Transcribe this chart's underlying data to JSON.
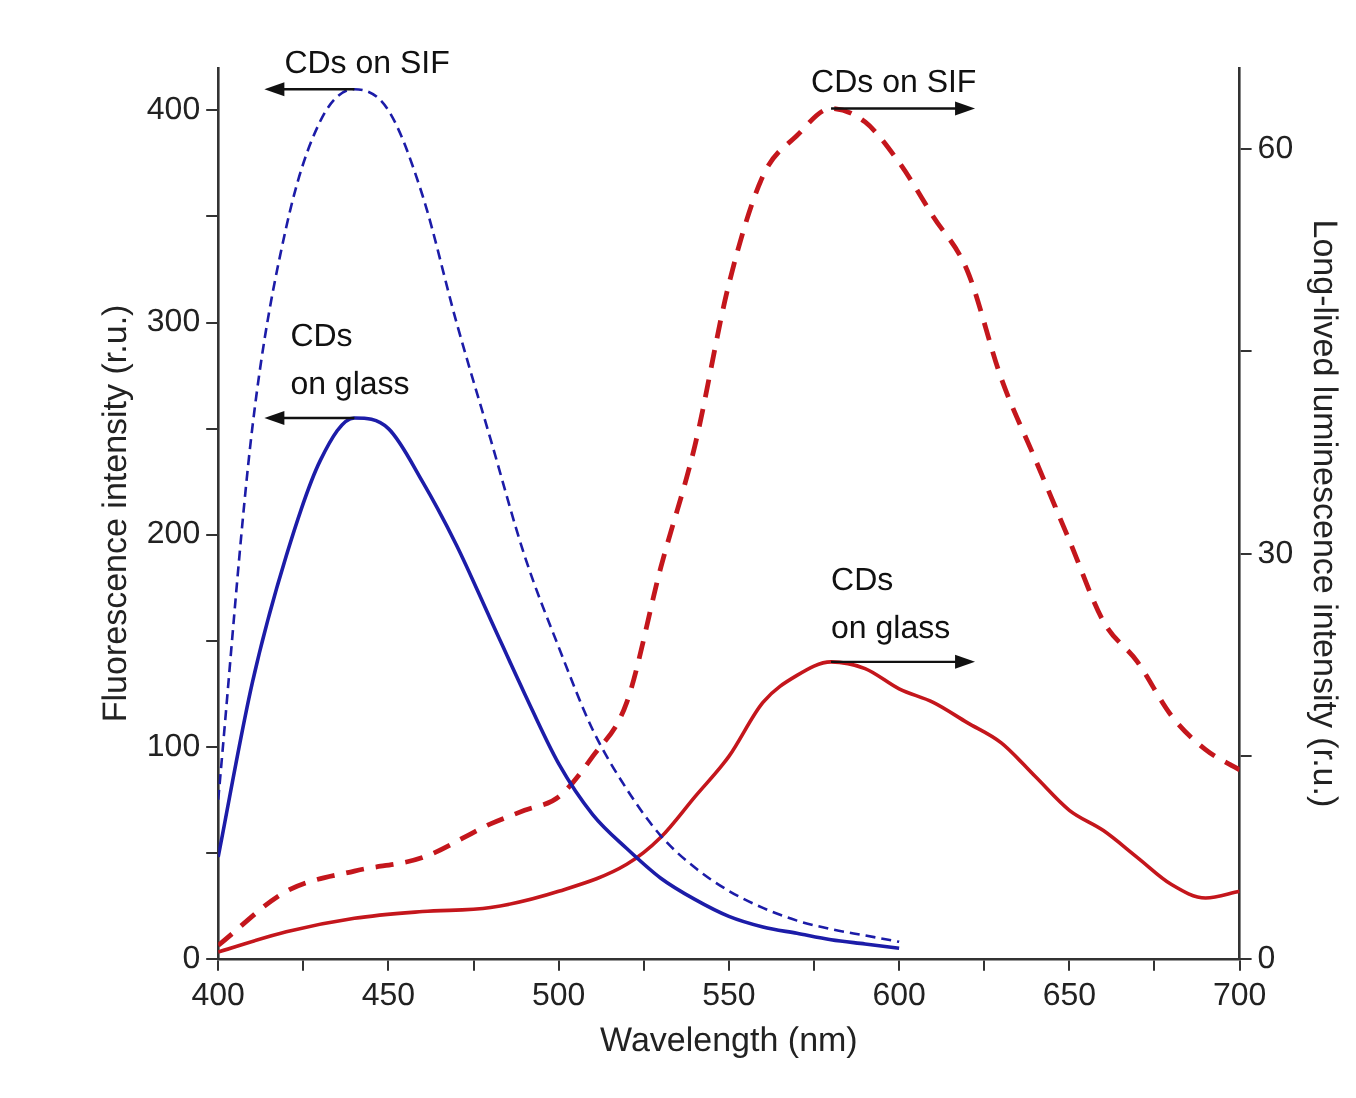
{
  "chart_data": {
    "type": "line",
    "xlabel": "Wavelength (nm)",
    "ylabel": "Fluorescence intensity (r.u.)",
    "y2label": "Long-lived luminescence intensity (r.u.)",
    "xlim": [
      400,
      700
    ],
    "xticks": [
      400,
      {
        "value": 425,
        "label": null
      },
      450,
      {
        "value": 475,
        "label": null
      },
      500,
      {
        "value": 525,
        "label": null
      },
      550,
      {
        "value": 575,
        "label": null
      },
      600,
      {
        "value": 625,
        "label": null
      },
      650,
      {
        "value": 675,
        "label": null
      },
      700
    ],
    "ylim": [
      0,
      420
    ],
    "yticks": [
      0,
      {
        "value": 50,
        "label": null
      },
      100,
      {
        "value": 150,
        "label": null
      },
      200,
      {
        "value": 250,
        "label": null
      },
      300,
      {
        "value": 350,
        "label": null
      },
      400
    ],
    "y2lim": [
      0,
      66
    ],
    "y2ticks": [
      0,
      {
        "value": 15,
        "label": null
      },
      30,
      {
        "value": 45,
        "label": null
      },
      60
    ],
    "legend": false,
    "grid": false,
    "marker": "none",
    "series": [
      {
        "color": "#1c1ca8",
        "line_style": "dashed",
        "x": [
          400,
          410,
          420,
          430,
          440,
          450,
          460,
          470,
          480,
          490,
          500,
          510,
          520,
          530,
          540,
          550,
          560,
          570,
          580,
          590,
          600
        ],
        "values": [
          75,
          250,
          345,
          395,
          410,
          400,
          360,
          300,
          245,
          190,
          147,
          108,
          80,
          58,
          43,
          32,
          24,
          18,
          14,
          11,
          8
        ]
      },
      {
        "color": "#1c1ca8",
        "line_style": "solid",
        "x": [
          400,
          410,
          420,
          430,
          440,
          450,
          460,
          470,
          480,
          490,
          500,
          510,
          520,
          530,
          540,
          550,
          560,
          570,
          580,
          590,
          600
        ],
        "values": [
          48,
          130,
          190,
          235,
          255,
          250,
          225,
          195,
          160,
          125,
          92,
          68,
          52,
          38,
          28,
          20,
          15,
          12,
          9,
          7,
          5
        ]
      },
      {
        "color": "#c4161c",
        "line_style": "dashed",
        "axis": "y2",
        "x": [
          400,
          420,
          440,
          460,
          480,
          490,
          500,
          510,
          520,
          530,
          540,
          550,
          560,
          570,
          580,
          590,
          600,
          610,
          620,
          630,
          640,
          650,
          660,
          670,
          680,
          690,
          700
        ],
        "values": [
          1,
          5,
          6.5,
          7.5,
          10,
          11,
          12,
          15,
          19,
          29,
          38,
          50,
          58,
          61,
          63,
          62,
          59,
          55,
          51,
          43,
          37,
          31,
          25,
          22,
          18,
          15.5,
          14
        ]
      },
      {
        "color": "#c4161c",
        "line_style": "solid",
        "axis": "y2",
        "x": [
          400,
          420,
          440,
          460,
          480,
          500,
          520,
          530,
          540,
          550,
          560,
          570,
          580,
          590,
          600,
          610,
          620,
          630,
          640,
          650,
          660,
          670,
          680,
          690,
          700
        ],
        "values": [
          0.5,
          2,
          3,
          3.5,
          3.8,
          5,
          7,
          9,
          12,
          15,
          19,
          21,
          22,
          21.5,
          20,
          19,
          17.5,
          16,
          13.5,
          11,
          9.5,
          7.5,
          5.5,
          4.5,
          5
        ]
      }
    ],
    "annotations": [
      "CDs on SIF",
      "CDs\non glass",
      "CDs on SIF",
      "CDs\non glass"
    ]
  }
}
